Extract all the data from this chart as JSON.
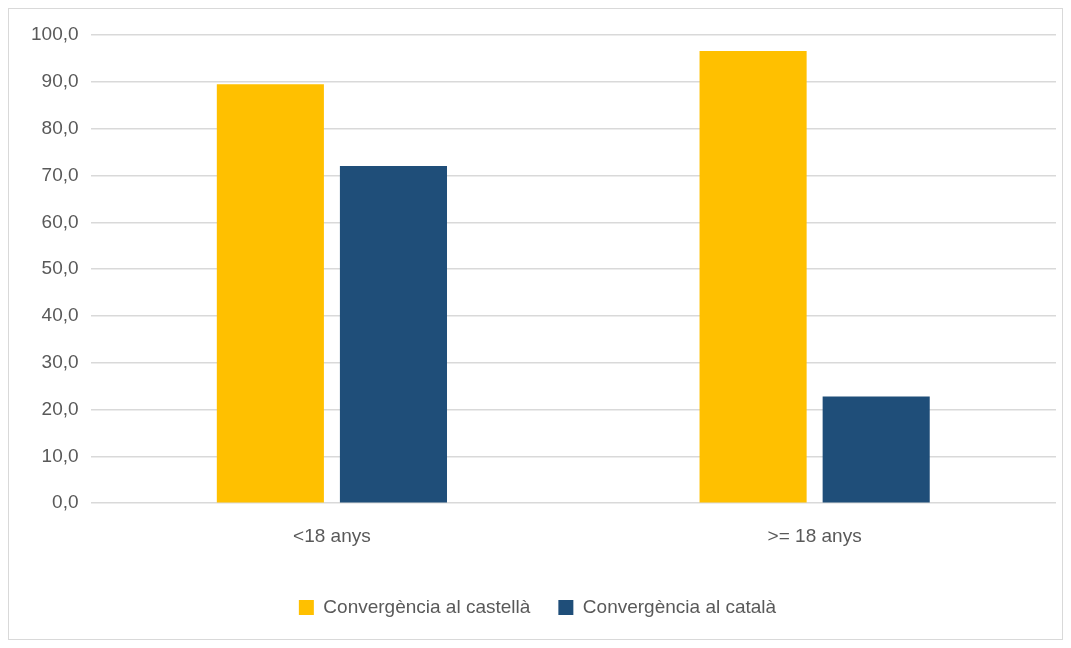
{
  "chart_data": {
    "type": "bar",
    "categories": [
      "<18 anys",
      ">= 18 anys"
    ],
    "series": [
      {
        "name": "Convergència al castellà",
        "color": "#ffc000",
        "values": [
          89.5,
          96.6
        ]
      },
      {
        "name": "Convergència al català",
        "color": "#1f4e79",
        "values": [
          72,
          22.8
        ]
      }
    ],
    "ylim": [
      0,
      100
    ],
    "yticks": [
      {
        "value": 0,
        "label": "0,0"
      },
      {
        "value": 10,
        "label": "10,0"
      },
      {
        "value": 20,
        "label": "20,0"
      },
      {
        "value": 30,
        "label": "30,0"
      },
      {
        "value": 40,
        "label": "40,0"
      },
      {
        "value": 50,
        "label": "50,0"
      },
      {
        "value": 60,
        "label": "60,0"
      },
      {
        "value": 70,
        "label": "70,0"
      },
      {
        "value": 80,
        "label": "80,0"
      },
      {
        "value": 90,
        "label": "90,0"
      },
      {
        "value": 100,
        "label": "100,0"
      }
    ],
    "grid": "y",
    "legend": "bottom"
  }
}
